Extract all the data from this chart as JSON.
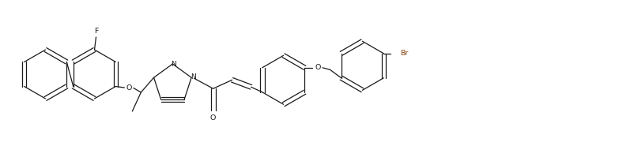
{
  "background": "#ffffff",
  "line_color": "#1a1a1a",
  "br_color": "#8B4513",
  "lw": 0.9,
  "figsize": [
    8.02,
    2.04
  ],
  "dpi": 100,
  "xlim": [
    0,
    16.04
  ],
  "ylim": [
    0,
    4.08
  ]
}
